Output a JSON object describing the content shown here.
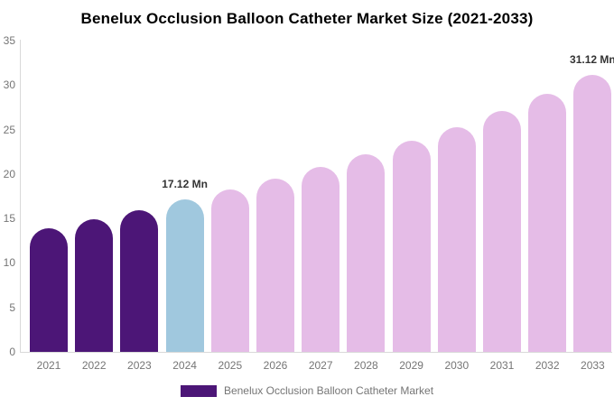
{
  "title": "Benelux Occlusion Balloon Catheter Market Size (2021-2033)",
  "legend": {
    "label": "Benelux Occlusion Balloon Catheter Market",
    "swatch_color": "#4C1677"
  },
  "colors": {
    "historical_bar": "#4C1677",
    "base_year_bar": "#A0C8DE",
    "forecast_bar": "#E5BCE7",
    "axis_line": "#D9D9D9",
    "tick_label": "#757575",
    "annotation_text": "#333333",
    "title_text": "#000000",
    "background": "#FFFFFF"
  },
  "chart_data": {
    "type": "bar",
    "title": "Benelux Occlusion Balloon Catheter Market Size (2021-2033)",
    "xlabel": "",
    "ylabel": "",
    "unit": "Mn",
    "ylim": [
      0,
      35
    ],
    "yticks": [
      0,
      5,
      10,
      15,
      20,
      25,
      30,
      35
    ],
    "grid": false,
    "legend_position": "bottom",
    "series_name": "Benelux Occlusion Balloon Catheter Market",
    "categories": [
      "2021",
      "2022",
      "2023",
      "2024",
      "2025",
      "2026",
      "2027",
      "2028",
      "2029",
      "2030",
      "2031",
      "2032",
      "2033"
    ],
    "values": [
      13.9,
      14.9,
      15.9,
      17.12,
      18.3,
      19.5,
      20.8,
      22.2,
      23.7,
      25.3,
      27.1,
      29.0,
      31.12
    ],
    "bar_roles": [
      "historical",
      "historical",
      "historical",
      "base_year",
      "forecast",
      "forecast",
      "forecast",
      "forecast",
      "forecast",
      "forecast",
      "forecast",
      "forecast",
      "forecast"
    ],
    "annotations": [
      {
        "category": "2024",
        "text": "17.12 Mn"
      },
      {
        "category": "2033",
        "text": "31.12 Mn"
      }
    ]
  }
}
